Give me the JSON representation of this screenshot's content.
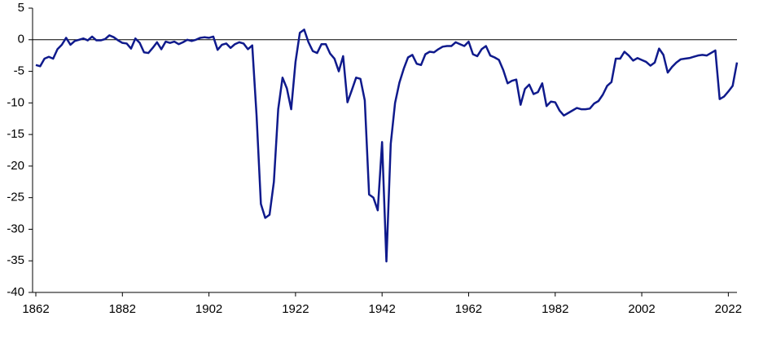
{
  "chart_data": {
    "type": "line",
    "x": [
      1862,
      1863,
      1864,
      1865,
      1866,
      1867,
      1868,
      1869,
      1870,
      1871,
      1872,
      1873,
      1874,
      1875,
      1876,
      1877,
      1878,
      1879,
      1880,
      1881,
      1882,
      1883,
      1884,
      1885,
      1886,
      1887,
      1888,
      1889,
      1890,
      1891,
      1892,
      1893,
      1894,
      1895,
      1896,
      1897,
      1898,
      1899,
      1900,
      1901,
      1902,
      1903,
      1904,
      1905,
      1906,
      1907,
      1908,
      1909,
      1910,
      1911,
      1912,
      1913,
      1914,
      1915,
      1916,
      1917,
      1918,
      1919,
      1920,
      1921,
      1922,
      1923,
      1924,
      1925,
      1926,
      1927,
      1928,
      1929,
      1930,
      1931,
      1932,
      1933,
      1934,
      1935,
      1936,
      1937,
      1938,
      1939,
      1940,
      1941,
      1942,
      1943,
      1944,
      1945,
      1946,
      1947,
      1948,
      1949,
      1950,
      1951,
      1952,
      1953,
      1954,
      1955,
      1956,
      1957,
      1958,
      1959,
      1960,
      1961,
      1962,
      1963,
      1964,
      1965,
      1966,
      1967,
      1968,
      1969,
      1970,
      1971,
      1972,
      1973,
      1974,
      1975,
      1976,
      1977,
      1978,
      1979,
      1980,
      1981,
      1982,
      1983,
      1984,
      1985,
      1986,
      1987,
      1988,
      1989,
      1990,
      1991,
      1992,
      1993,
      1994,
      1995,
      1996,
      1997,
      1998,
      1999,
      2000,
      2001,
      2002,
      2003,
      2004,
      2005,
      2006,
      2007,
      2008,
      2009,
      2010,
      2011,
      2012,
      2013,
      2014,
      2015,
      2016,
      2017,
      2018,
      2019,
      2020,
      2021,
      2022,
      2023,
      2024
    ],
    "series": [
      {
        "color": "#0f1a8c",
        "values": [
          -4,
          -4.2,
          -3,
          -2.7,
          -3,
          -1.5,
          -0.8,
          0.3,
          -0.8,
          -0.2,
          0,
          0.2,
          -0.1,
          0.5,
          -0.1,
          -0.1,
          0.1,
          0.7,
          0.4,
          -0.1,
          -0.5,
          -0.6,
          -1.4,
          0.2,
          -0.5,
          -2,
          -2.1,
          -1.3,
          -0.4,
          -1.5,
          -0.3,
          -0.5,
          -0.3,
          -0.7,
          -0.4,
          0,
          -0.2,
          0,
          0.3,
          0.4,
          0.3,
          0.5,
          -1.6,
          -0.8,
          -0.6,
          -1.3,
          -0.7,
          -0.4,
          -0.6,
          -1.5,
          -0.9,
          -12,
          -26,
          -28.2,
          -27.7,
          -22.5,
          -11,
          -6,
          -7.7,
          -11,
          -3.5,
          1.1,
          1.6,
          -0.4,
          -1.8,
          -2.1,
          -0.7,
          -0.7,
          -2.2,
          -3,
          -5,
          -2.6,
          -9.9,
          -8,
          -6,
          -6.2,
          -9.6,
          -24.5,
          -25,
          -27,
          -16.2,
          -35.1,
          -16.5,
          -10,
          -6.8,
          -4.6,
          -2.8,
          -2.4,
          -3.8,
          -4,
          -2.3,
          -1.9,
          -2,
          -1.5,
          -1.1,
          -1,
          -1,
          -0.4,
          -0.7,
          -1,
          -0.3,
          -2.3,
          -2.6,
          -1.5,
          -1,
          -2.5,
          -2.8,
          -3.2,
          -4.8,
          -6.9,
          -6.5,
          -6.3,
          -10.3,
          -7.8,
          -7.1,
          -8.6,
          -8.3,
          -6.9,
          -10.5,
          -9.8,
          -9.9,
          -11.2,
          -12,
          -11.6,
          -11.2,
          -10.8,
          -11,
          -11,
          -10.9,
          -10.1,
          -9.7,
          -8.7,
          -7.3,
          -6.7,
          -3,
          -3,
          -1.9,
          -2.5,
          -3.3,
          -2.9,
          -3.2,
          -3.5,
          -4.1,
          -3.6,
          -1.4,
          -2.4,
          -5.2,
          -4.3,
          -3.6,
          -3.1,
          -3,
          -2.9,
          -2.7,
          -2.5,
          -2.4,
          -2.5,
          -2.1,
          -1.7,
          -9.4,
          -9,
          -8.2,
          -7.3,
          -3.6
        ]
      }
    ],
    "xlim": [
      1862,
      2024
    ],
    "xticks": [
      1862,
      1882,
      1902,
      1922,
      1942,
      1962,
      1982,
      2002,
      2022
    ],
    "ylim": [
      -40,
      5
    ],
    "yticks": [
      5,
      0,
      -5,
      -10,
      -15,
      -20,
      -25,
      -30,
      -35,
      -40
    ]
  }
}
